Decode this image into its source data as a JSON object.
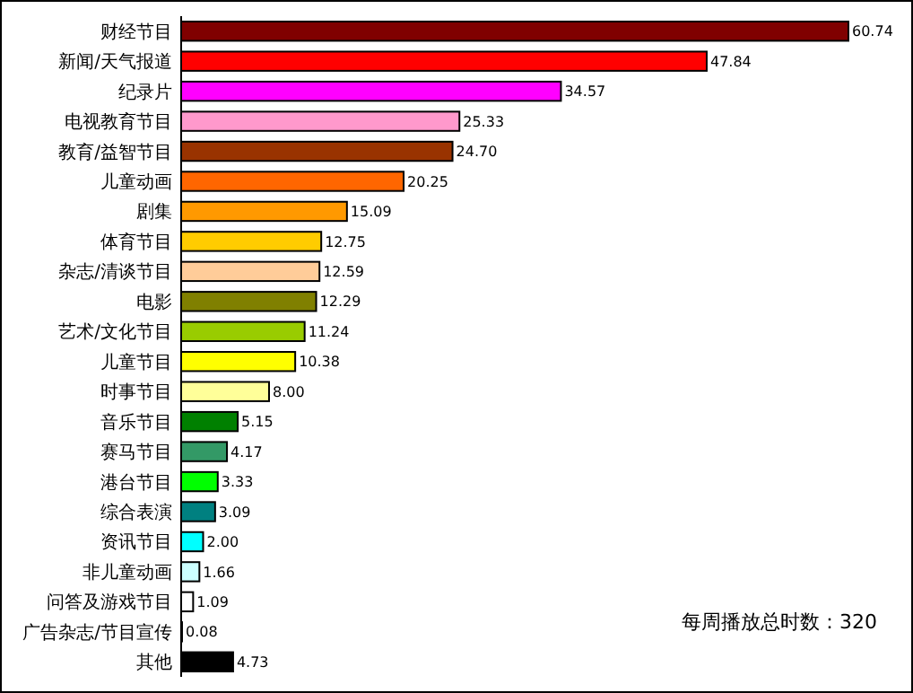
{
  "chart_data": {
    "type": "bar",
    "orientation": "horizontal",
    "categories": [
      "财经节目",
      "新闻/天气报道",
      "纪录片",
      "电视教育节目",
      "教育/益智节目",
      "儿童动画",
      "剧集",
      "体育节目",
      "杂志/清谈节目",
      "电影",
      "艺术/文化节目",
      "儿童节目",
      "时事节目",
      "音乐节目",
      "赛马节目",
      "港台节目",
      "综合表演",
      "资讯节目",
      "非儿童动画",
      "问答及游戏节目",
      "广告杂志/节目宣传",
      "其他"
    ],
    "values": [
      60.74,
      47.84,
      34.57,
      25.33,
      24.7,
      20.25,
      15.09,
      12.75,
      12.59,
      12.29,
      11.24,
      10.38,
      8.0,
      5.15,
      4.17,
      3.33,
      3.09,
      2.0,
      1.66,
      1.09,
      0.08,
      4.73
    ],
    "value_labels": [
      "60.74",
      "47.84",
      "34.57",
      "25.33",
      "24.70",
      "20.25",
      "15.09",
      "12.75",
      "12.59",
      "12.29",
      "11.24",
      "10.38",
      "8.00",
      "5.15",
      "4.17",
      "3.33",
      "3.09",
      "2.00",
      "1.66",
      "1.09",
      "0.08",
      "4.73"
    ],
    "colors": [
      "#800000",
      "#ff0000",
      "#ff00ff",
      "#ff99cc",
      "#993300",
      "#ff6600",
      "#ff9900",
      "#ffcc00",
      "#ffcc99",
      "#808000",
      "#99cc00",
      "#ffff00",
      "#ffff99",
      "#008000",
      "#339966",
      "#00ff00",
      "#008080",
      "#00ffff",
      "#ccffff",
      "#ffffff",
      "#ffffff",
      "#000000"
    ],
    "tick_labels": "y",
    "annotations": [
      "每周播放总时数：320"
    ]
  }
}
